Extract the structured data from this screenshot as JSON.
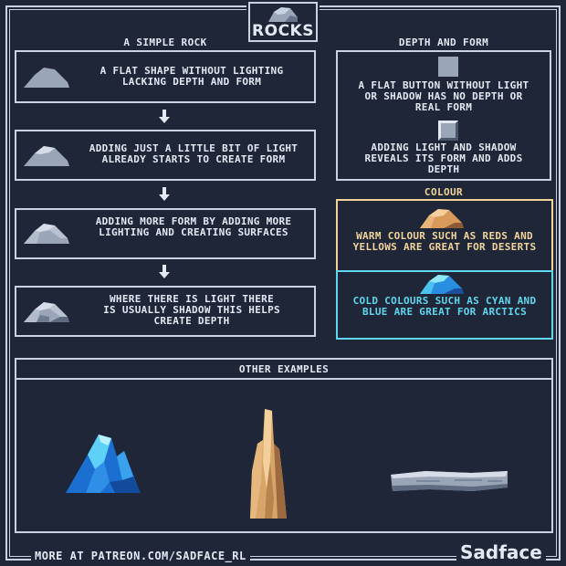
{
  "title": {
    "logo_text": "ROCKS",
    "logo_icon": "rock-logo-icon"
  },
  "simple_rock": {
    "header": "A SIMPLE ROCK",
    "steps": [
      {
        "text": "A FLAT SHAPE WITHOUT LIGHTING LACKING DEPTH AND FORM",
        "icon": "flat-rock-icon"
      },
      {
        "text": "ADDING JUST A LITTLE BIT OF LIGHT ALREADY STARTS TO CREATE FORM",
        "icon": "lit-rock-icon"
      },
      {
        "text": "ADDING MORE FORM BY ADDING MORE LIGHTING AND CREATING SURFACES",
        "icon": "surfaced-rock-icon"
      },
      {
        "text": "WHERE THERE IS LIGHT THERE IS USUALLY SHADOW THIS HELPS CREATE DEPTH",
        "icon": "shaded-rock-icon"
      }
    ]
  },
  "depth_form": {
    "header": "DEPTH AND FORM",
    "flat_text": "A FLAT BUTTON WITHOUT LIGHT OR SHADOW HAS NO DEPTH OR REAL FORM",
    "shaded_text": "ADDING LIGHT AND SHADOW REVEALS ITS FORM AND ADDS DEPTH"
  },
  "colour": {
    "header": "COLOUR",
    "warm_text": "WARM COLOUR SUCH AS REDS AND YELLOWS ARE GREAT FOR DESERTS",
    "cold_text": "COLD COLOURS SUCH AS CYAN AND BLUE ARE GREAT FOR ARCTICS",
    "warm_color": "#f1d49c",
    "cold_color": "#5fd8ef"
  },
  "examples": {
    "header": "OTHER EXAMPLES",
    "items": [
      "ice-crystal-icon",
      "sandstone-spire-icon",
      "flat-stone-slab-icon"
    ]
  },
  "footer": {
    "text": "MORE AT PATREON.COM/SADFACE_RL",
    "brand": "Sadface"
  },
  "colors": {
    "background": "#1e2638",
    "line": "#c9d2e0",
    "text": "#e3e9f2"
  }
}
